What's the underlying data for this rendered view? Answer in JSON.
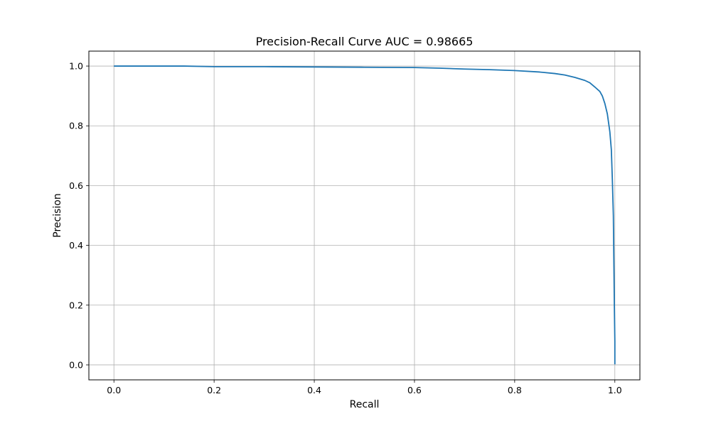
{
  "chart_data": {
    "type": "line",
    "title": "Precision-Recall Curve AUC = 0.98665",
    "xlabel": "Recall",
    "ylabel": "Precision",
    "xlim": [
      -0.05,
      1.05
    ],
    "ylim": [
      -0.05,
      1.05
    ],
    "x_ticks": [
      "0.0",
      "0.2",
      "0.4",
      "0.6",
      "0.8",
      "1.0"
    ],
    "y_ticks": [
      "0.0",
      "0.2",
      "0.4",
      "0.6",
      "0.8",
      "1.0"
    ],
    "grid": true,
    "series": [
      {
        "color": "#1f77b4",
        "x": [
          0.0,
          0.14,
          0.2,
          0.3,
          0.4,
          0.5,
          0.6,
          0.65,
          0.7,
          0.75,
          0.8,
          0.85,
          0.88,
          0.9,
          0.92,
          0.94,
          0.95,
          0.96,
          0.97,
          0.975,
          0.98,
          0.985,
          0.99,
          0.993,
          0.995,
          0.997,
          0.998,
          0.999,
          1.0,
          1.0
        ],
        "y": [
          1.0,
          1.0,
          0.998,
          0.998,
          0.997,
          0.996,
          0.995,
          0.993,
          0.99,
          0.988,
          0.985,
          0.98,
          0.975,
          0.97,
          0.962,
          0.952,
          0.944,
          0.93,
          0.915,
          0.9,
          0.875,
          0.84,
          0.78,
          0.72,
          0.62,
          0.5,
          0.35,
          0.2,
          0.08,
          0.002
        ]
      }
    ]
  }
}
